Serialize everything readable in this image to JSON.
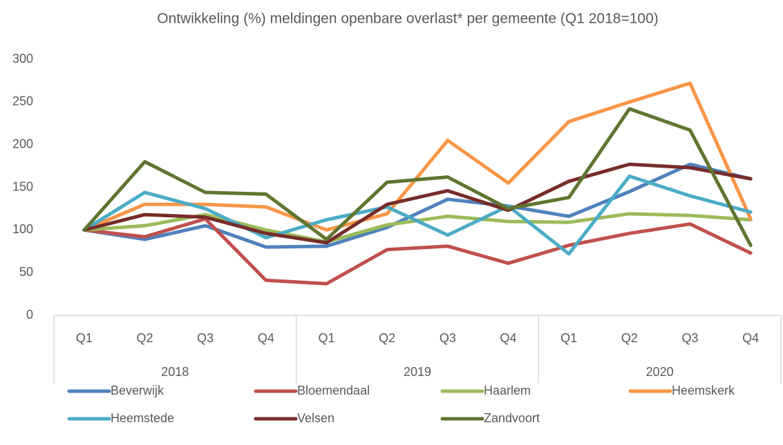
{
  "chart_data": {
    "type": "line",
    "title": "Ontwikkeling (%) meldingen openbare overlast* per gemeente (Q1 2018=100)",
    "categories": [
      "Q1",
      "Q2",
      "Q3",
      "Q4",
      "Q1",
      "Q2",
      "Q3",
      "Q4",
      "Q1",
      "Q2",
      "Q3",
      "Q4"
    ],
    "category_groups": [
      "2018",
      "2019",
      "2020"
    ],
    "ylim": [
      0,
      300
    ],
    "yticks": [
      0,
      50,
      100,
      150,
      200,
      250,
      300
    ],
    "grid": false,
    "legend": "bottom",
    "series": [
      {
        "name": "Beverwijk",
        "color": "#4f81bd",
        "values": [
          100,
          89,
          105,
          80,
          81,
          103,
          136,
          128,
          116,
          145,
          177,
          160
        ]
      },
      {
        "name": "Bloemendaal",
        "color": "#c0504d",
        "values": [
          100,
          92,
          113,
          41,
          37,
          77,
          81,
          61,
          82,
          96,
          107,
          73
        ]
      },
      {
        "name": "Haarlem",
        "color": "#9bbb59",
        "values": [
          100,
          105,
          118,
          100,
          86,
          106,
          116,
          110,
          109,
          119,
          117,
          112
        ]
      },
      {
        "name": "Heemskerk",
        "color": "#f79646",
        "values": [
          100,
          130,
          130,
          127,
          100,
          119,
          205,
          155,
          227,
          250,
          272,
          113
        ]
      },
      {
        "name": "Heemstede",
        "color": "#4bacc6",
        "values": [
          100,
          144,
          125,
          91,
          112,
          127,
          94,
          128,
          72,
          163,
          140,
          121
        ]
      },
      {
        "name": "Velsen",
        "color": "#772c2a",
        "values": [
          100,
          118,
          115,
          96,
          85,
          130,
          146,
          123,
          157,
          177,
          173,
          160
        ]
      },
      {
        "name": "Zandvoort",
        "color": "#5f7530",
        "values": [
          100,
          180,
          144,
          142,
          89,
          156,
          162,
          125,
          138,
          242,
          217,
          82
        ]
      }
    ]
  }
}
